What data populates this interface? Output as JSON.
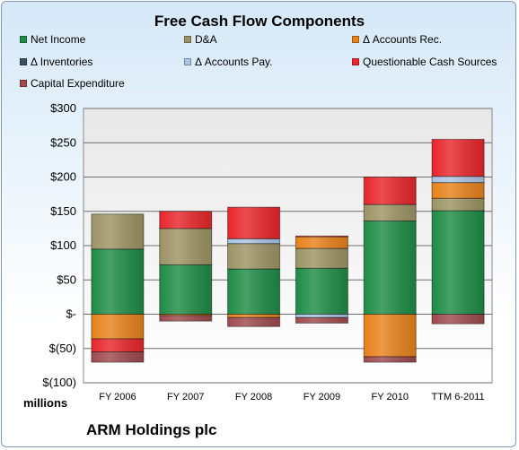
{
  "chart_data": {
    "type": "bar",
    "stacked": true,
    "title": "Free Cash Flow Components",
    "subtitle": "ARM Holdings plc",
    "ylabel_units": "millions",
    "ylim": [
      -100,
      300
    ],
    "yticks": [
      -100,
      -50,
      0,
      50,
      100,
      150,
      200,
      250,
      300
    ],
    "ytick_labels": [
      "$(100)",
      "$(50)",
      "$-",
      "$50",
      "$100",
      "$150",
      "$200",
      "$250",
      "$300"
    ],
    "categories": [
      "FY 2006",
      "FY 2007",
      "FY 2008",
      "FY 2009",
      "FY 2010",
      "TTM 6-2011"
    ],
    "legend_position": "top",
    "grid": true,
    "series": [
      {
        "name": "Net Income",
        "color": "#1e8c46",
        "values": [
          95,
          72,
          66,
          67,
          136,
          151
        ]
      },
      {
        "name": "D&A",
        "color": "#9c9465",
        "values": [
          51,
          53,
          37,
          29,
          24,
          18
        ]
      },
      {
        "name": "Δ Accounts Rec.",
        "color": "#e8821c",
        "values": [
          -36,
          -2,
          -5,
          17,
          -62,
          23
        ]
      },
      {
        "name": "Δ Inventories",
        "color": "#3c5064",
        "values": [
          0,
          0,
          0,
          0,
          0,
          0
        ]
      },
      {
        "name": "Δ Accounts Pay.",
        "color": "#a9c4e4",
        "values": [
          0,
          0,
          7,
          -5,
          0,
          9
        ]
      },
      {
        "name": "Questionable Cash Sources",
        "color": "#e8262b",
        "values": [
          -19,
          25,
          46,
          1,
          40,
          54
        ]
      },
      {
        "name": "Capital Expenditure",
        "color": "#9e4a4e",
        "values": [
          -15,
          -8,
          -13,
          -8,
          -8,
          -14
        ]
      }
    ]
  }
}
